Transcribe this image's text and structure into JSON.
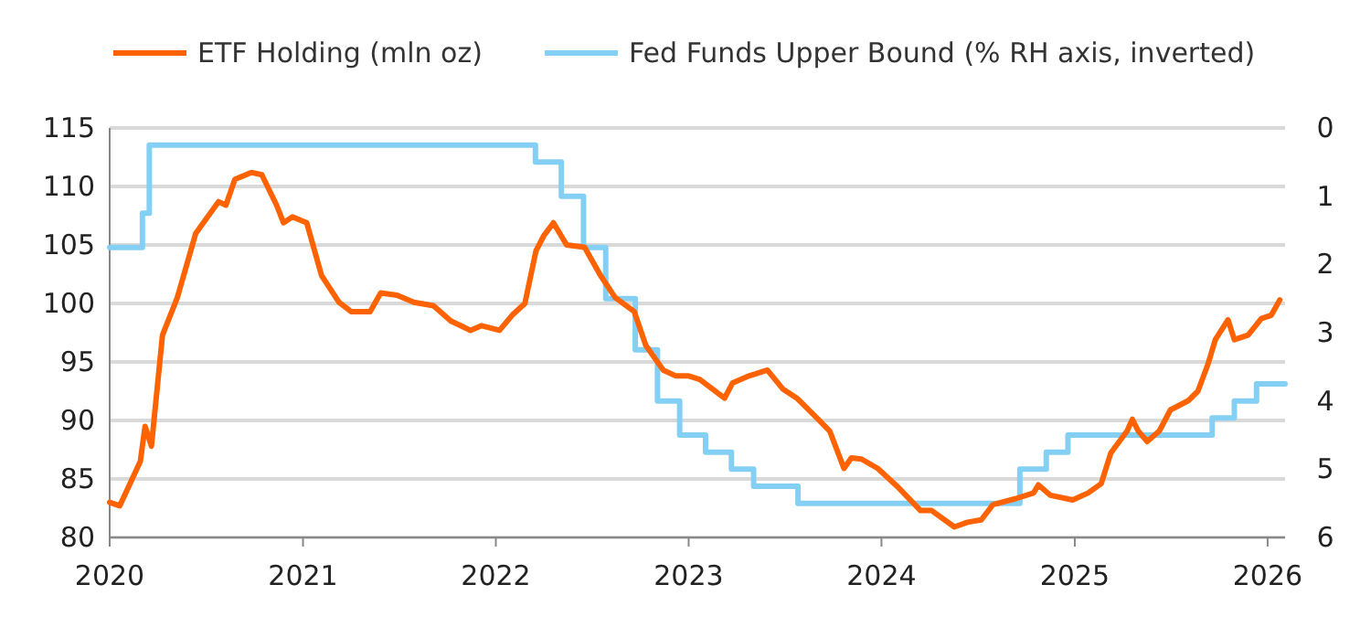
{
  "chart_data": {
    "type": "line",
    "xlim": [
      "2020-01-01",
      "2026-02-03"
    ],
    "xticks": [
      "2020",
      "2021",
      "2022",
      "2023",
      "2024",
      "2025",
      "2026"
    ],
    "ylim": [
      80,
      115
    ],
    "yticks": [
      80,
      85,
      90,
      95,
      100,
      105,
      110,
      115
    ],
    "y2lim": [
      6,
      0
    ],
    "y2ticks": [
      0,
      1,
      2,
      3,
      4,
      5,
      6
    ],
    "grid": "y",
    "legend": "top",
    "series": [
      {
        "name": "ETF Holding (mln oz)",
        "type": "line",
        "color": "#ff6200",
        "x": [
          "2020-01-01",
          "2020-01-20",
          "2020-02-28",
          "2020-03-08",
          "2020-03-20",
          "2020-04-10",
          "2020-05-08",
          "2020-06-12",
          "2020-07-25",
          "2020-08-08",
          "2020-08-25",
          "2020-09-25",
          "2020-10-15",
          "2020-11-12",
          "2020-11-25",
          "2020-12-12",
          "2021-01-08",
          "2021-02-05",
          "2021-03-10",
          "2021-04-02",
          "2021-05-08",
          "2021-05-28",
          "2021-06-28",
          "2021-07-30",
          "2021-09-05",
          "2021-10-08",
          "2021-11-14",
          "2021-12-05",
          "2022-01-08",
          "2022-02-01",
          "2022-02-25",
          "2022-03-18",
          "2022-04-02",
          "2022-04-20",
          "2022-05-15",
          "2022-06-18",
          "2022-07-18",
          "2022-08-15",
          "2022-09-20",
          "2022-10-12",
          "2022-11-14",
          "2022-12-08",
          "2023-01-01",
          "2023-01-22",
          "2023-03-10",
          "2023-03-25",
          "2023-04-25",
          "2023-05-30",
          "2023-06-28",
          "2023-07-25",
          "2023-09-03",
          "2023-09-25",
          "2023-10-22",
          "2023-11-05",
          "2023-11-24",
          "2023-12-25",
          "2024-01-30",
          "2024-03-15",
          "2024-04-05",
          "2024-05-18",
          "2024-06-12",
          "2024-07-08",
          "2024-07-30",
          "2024-09-10",
          "2024-10-15",
          "2024-10-24",
          "2024-11-16",
          "2024-12-28",
          "2025-01-26",
          "2025-02-20",
          "2025-03-10",
          "2025-04-10",
          "2025-04-20",
          "2025-05-01",
          "2025-05-18",
          "2025-06-10",
          "2025-07-01",
          "2025-08-04",
          "2025-08-22",
          "2025-09-10",
          "2025-09-24",
          "2025-10-18",
          "2025-10-30",
          "2025-11-25",
          "2025-12-20",
          "2026-01-08",
          "2026-01-24"
        ],
        "values": [
          83,
          82.7,
          86.5,
          89.5,
          87.8,
          97.3,
          100.5,
          106,
          108.7,
          108.4,
          110.6,
          111.2,
          111,
          108.4,
          106.9,
          107.4,
          106.9,
          102.4,
          100.1,
          99.3,
          99.3,
          100.9,
          100.7,
          100.1,
          99.8,
          98.5,
          97.7,
          98.1,
          97.7,
          99,
          100,
          104.5,
          105.8,
          106.9,
          105,
          104.8,
          102.4,
          100.5,
          99.3,
          96.4,
          94.3,
          93.8,
          93.8,
          93.5,
          91.9,
          93.2,
          93.8,
          94.3,
          92.7,
          91.9,
          90.1,
          89.1,
          85.9,
          86.8,
          86.7,
          85.9,
          84.4,
          82.3,
          82.3,
          80.9,
          81.3,
          81.5,
          82.8,
          83.3,
          83.8,
          84.5,
          83.6,
          83.2,
          83.8,
          84.6,
          87.2,
          89.1,
          90.1,
          89.1,
          88.2,
          89.1,
          90.9,
          91.7,
          92.5,
          94.8,
          96.9,
          98.6,
          96.9,
          97.3,
          98.7,
          99,
          100.3
        ]
      },
      {
        "name": "Fed Funds Upper Bound (% RH axis, inverted)",
        "type": "step",
        "axis": "y2",
        "color": "#84d0f5",
        "x": [
          "2020-01-01",
          "2020-03-03",
          "2020-03-16",
          "2022-03-17",
          "2022-05-05",
          "2022-06-16",
          "2022-07-28",
          "2022-09-22",
          "2022-11-03",
          "2022-12-15",
          "2023-02-02",
          "2023-03-23",
          "2023-05-04",
          "2023-07-27",
          "2024-09-19",
          "2024-11-08",
          "2024-12-19",
          "2025-09-18",
          "2025-10-30",
          "2025-12-11",
          "2026-02-03"
        ],
        "values": [
          1.75,
          1.25,
          0.25,
          0.5,
          1,
          1.75,
          2.5,
          3.25,
          4,
          4.5,
          4.75,
          5,
          5.25,
          5.5,
          5,
          4.75,
          4.5,
          4.25,
          4,
          3.75,
          3.75
        ]
      }
    ]
  }
}
